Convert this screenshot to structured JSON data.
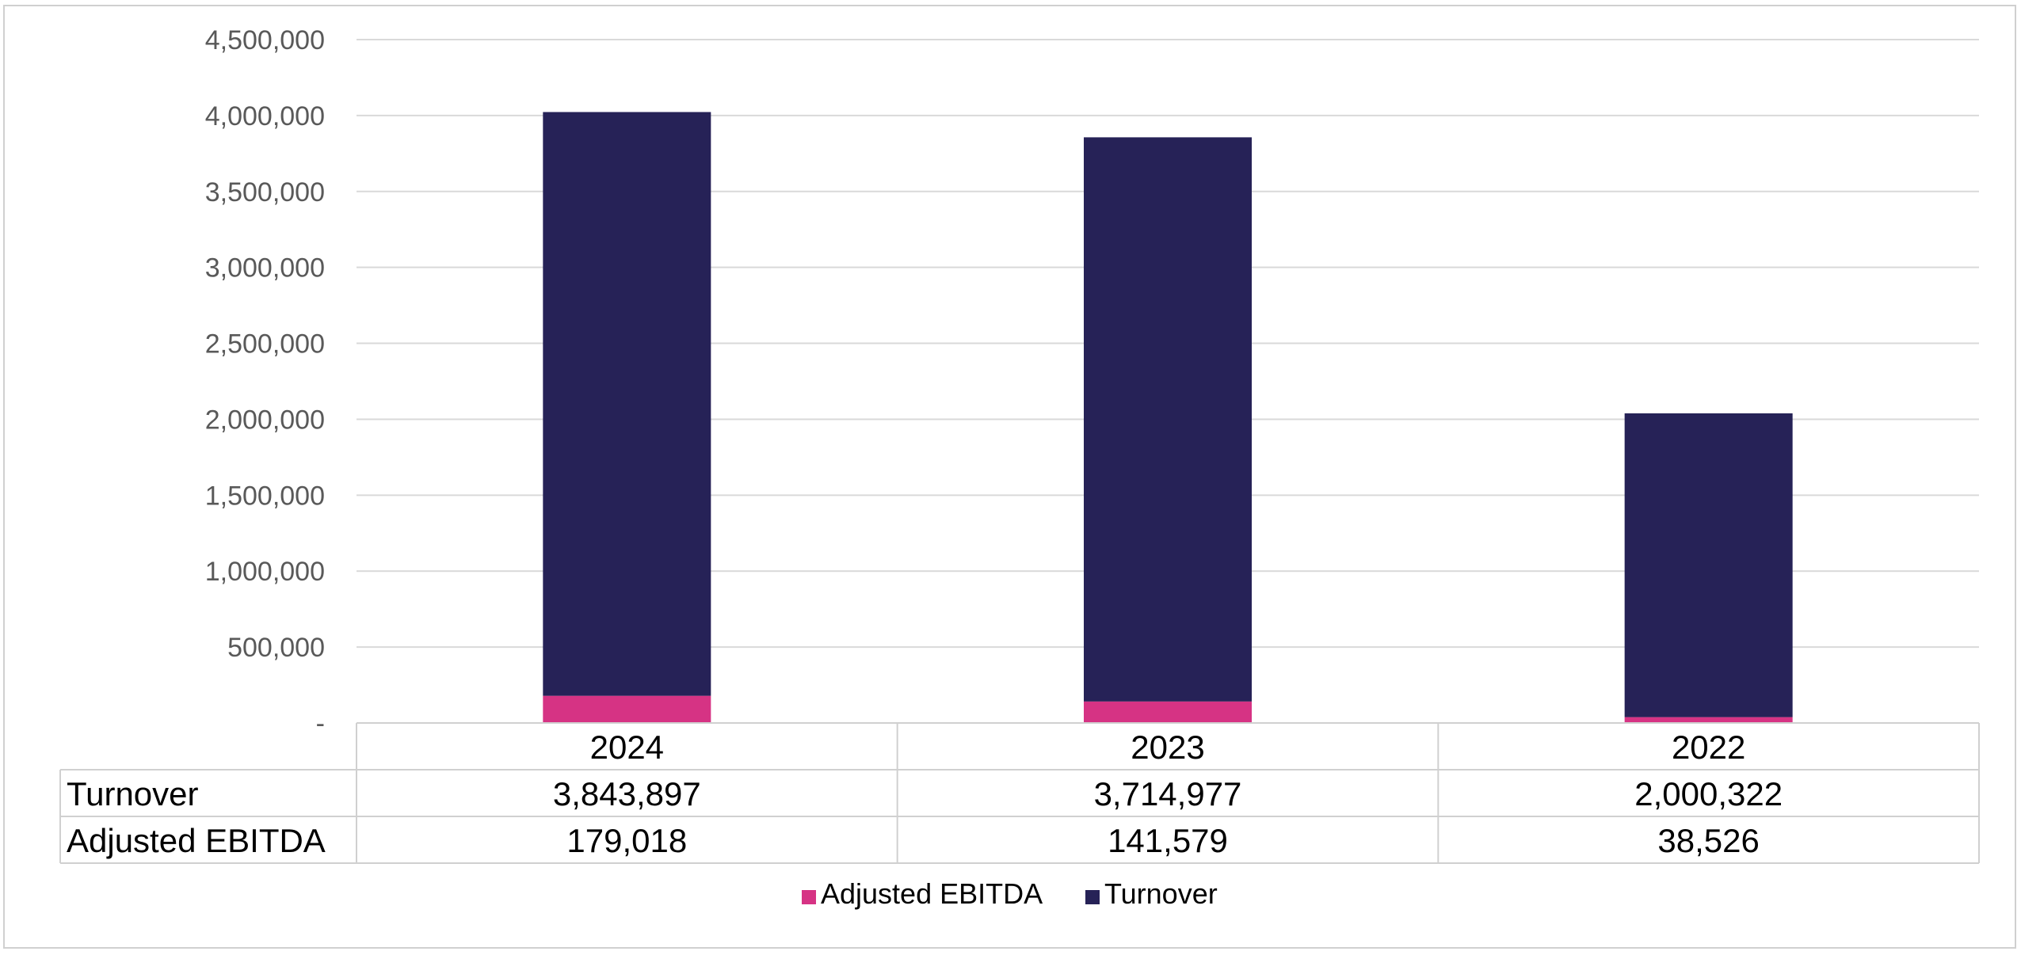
{
  "chart_data": {
    "type": "bar",
    "stacked": true,
    "categories": [
      "2024",
      "2023",
      "2022"
    ],
    "series": [
      {
        "name": "Adjusted EBITDA",
        "values": [
          179018,
          141579,
          38526
        ],
        "display": [
          "179,018",
          "141,579",
          "38,526"
        ],
        "color": "#D63384"
      },
      {
        "name": "Turnover",
        "values": [
          3843897,
          3714977,
          2000322
        ],
        "display": [
          "3,843,897",
          "3,714,977",
          "2,000,322"
        ],
        "color": "#262257"
      }
    ],
    "ylim": [
      0,
      4500000
    ],
    "y_ticks": [
      {
        "value": 0,
        "label": "-"
      },
      {
        "value": 500000,
        "label": "500,000"
      },
      {
        "value": 1000000,
        "label": "1,000,000"
      },
      {
        "value": 1500000,
        "label": "1,500,000"
      },
      {
        "value": 2000000,
        "label": "2,000,000"
      },
      {
        "value": 2500000,
        "label": "2,500,000"
      },
      {
        "value": 3000000,
        "label": "3,000,000"
      },
      {
        "value": 3500000,
        "label": "3,500,000"
      },
      {
        "value": 4000000,
        "label": "4,000,000"
      },
      {
        "value": 4500000,
        "label": "4,500,000"
      }
    ],
    "grid": true,
    "legend": "bottom",
    "data_table": {
      "rows": [
        {
          "label": "Turnover",
          "values": [
            "3,843,897",
            "3,714,977",
            "2,000,322"
          ]
        },
        {
          "label": "Adjusted EBITDA",
          "values": [
            "179,018",
            "141,579",
            "38,526"
          ]
        }
      ]
    }
  }
}
